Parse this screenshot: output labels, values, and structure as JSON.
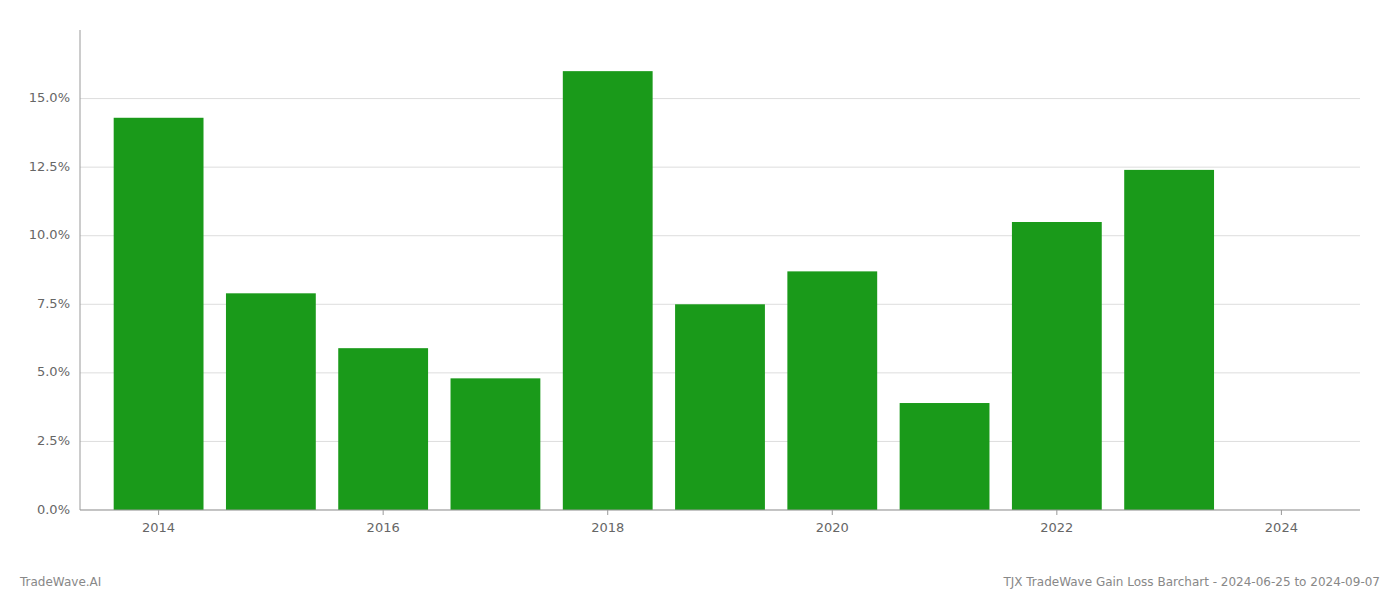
{
  "chart_data": {
    "type": "bar",
    "x": [
      2014,
      2015,
      2016,
      2017,
      2018,
      2019,
      2020,
      2021,
      2022,
      2023
    ],
    "values": [
      0.143,
      0.079,
      0.059,
      0.048,
      0.16,
      0.075,
      0.087,
      0.039,
      0.105,
      0.124
    ],
    "color": "#1a9a1a",
    "xlim": [
      2013.3,
      2024.7
    ],
    "xticks": [
      2014,
      2016,
      2018,
      2020,
      2022,
      2024
    ],
    "ylim": [
      0,
      0.175
    ],
    "yticks": [
      {
        "value": 0.0,
        "label": "0.0%"
      },
      {
        "value": 0.025,
        "label": "2.5%"
      },
      {
        "value": 0.05,
        "label": "5.0%"
      },
      {
        "value": 0.075,
        "label": "7.5%"
      },
      {
        "value": 0.1,
        "label": "10.0%"
      },
      {
        "value": 0.125,
        "label": "12.5%"
      },
      {
        "value": 0.15,
        "label": "15.0%"
      }
    ],
    "grid": true,
    "annotations": [
      "TradeWave.AI",
      "TJX TradeWave Gain Loss Barchart - 2024-06-25 to 2024-09-07"
    ]
  }
}
